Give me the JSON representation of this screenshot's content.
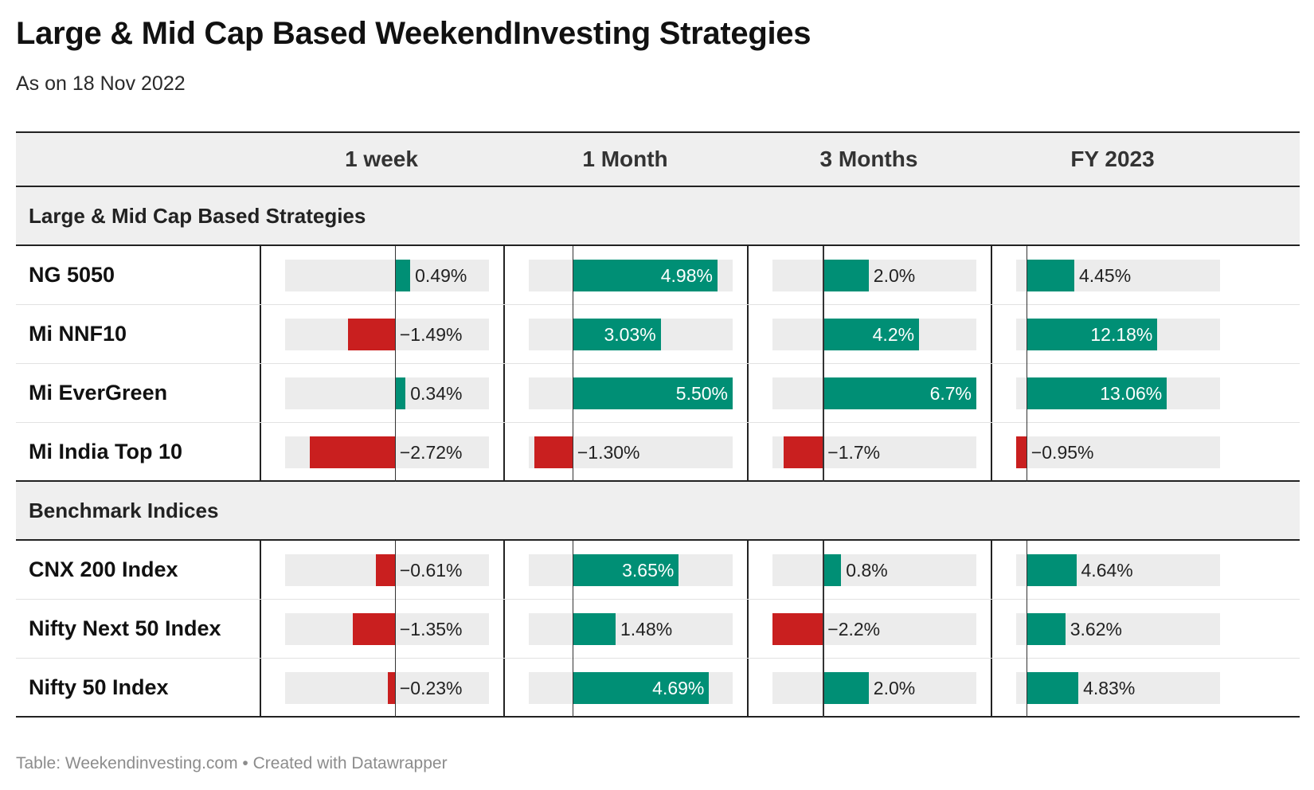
{
  "title": "Large & Mid Cap Based WeekendInvesting Strategies",
  "subtitle": "As on 18 Nov 2022",
  "source": "Table: Weekendinvesting.com • Created with Datawrapper",
  "colors": {
    "positive": "#008f75",
    "negative": "#c91f1f",
    "track": "#ececec",
    "header_bg": "#efefef"
  },
  "chart_data": {
    "type": "table",
    "columns": [
      {
        "label": "1 week",
        "range": [
          -3.5,
          3.0
        ]
      },
      {
        "label": "1 Month",
        "range": [
          -1.5,
          5.5
        ]
      },
      {
        "label": "3 Months",
        "range": [
          -2.2,
          6.7
        ]
      },
      {
        "label": "FY 2023",
        "range": [
          -0.95,
          18.0
        ]
      }
    ],
    "sections": [
      {
        "name": "Large & Mid Cap Based Strategies",
        "rows": [
          {
            "label": "NG 5050",
            "values": [
              0.49,
              4.98,
              2.0,
              4.45
            ],
            "text": [
              "0.49%",
              "4.98%",
              "2.0%",
              "4.45%"
            ]
          },
          {
            "label": "Mi NNF10",
            "values": [
              -1.49,
              3.03,
              4.2,
              12.18
            ],
            "text": [
              "−1.49%",
              "3.03%",
              "4.2%",
              "12.18%"
            ]
          },
          {
            "label": "Mi EverGreen",
            "values": [
              0.34,
              5.5,
              6.7,
              13.06
            ],
            "text": [
              "0.34%",
              "5.50%",
              "6.7%",
              "13.06%"
            ]
          },
          {
            "label": "Mi India Top 10",
            "values": [
              -2.72,
              -1.3,
              -1.7,
              -0.95
            ],
            "text": [
              "−2.72%",
              "−1.30%",
              "−1.7%",
              "−0.95%"
            ]
          }
        ]
      },
      {
        "name": "Benchmark Indices",
        "rows": [
          {
            "label": "CNX 200 Index",
            "values": [
              -0.61,
              3.65,
              0.8,
              4.64
            ],
            "text": [
              "−0.61%",
              "3.65%",
              "0.8%",
              "4.64%"
            ]
          },
          {
            "label": "Nifty Next 50 Index",
            "values": [
              -1.35,
              1.48,
              -2.2,
              3.62
            ],
            "text": [
              "−1.35%",
              "1.48%",
              "−2.2%",
              "3.62%"
            ]
          },
          {
            "label": "Nifty 50 Index",
            "values": [
              -0.23,
              4.69,
              2.0,
              4.83
            ],
            "text": [
              "−0.23%",
              "4.69%",
              "2.0%",
              "4.83%"
            ]
          }
        ]
      }
    ]
  }
}
